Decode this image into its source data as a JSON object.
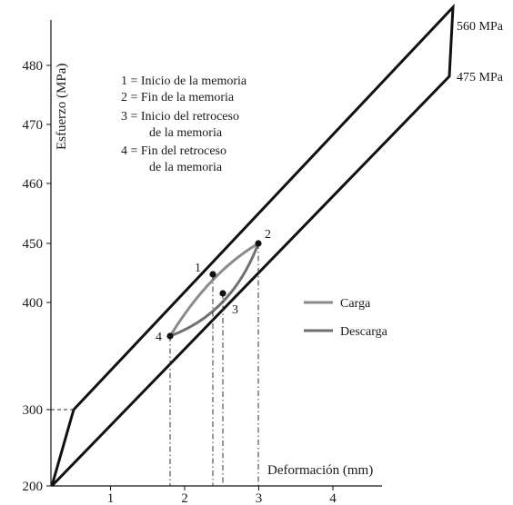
{
  "chart_data": {
    "type": "line",
    "title": "",
    "xlabel": "Deformación (mm)",
    "ylabel": "Esfuerzo (MPa)",
    "x_ticks": [
      "1",
      "2",
      "3",
      "4"
    ],
    "y_ticks": [
      "200",
      "300",
      "400",
      "450",
      "460",
      "470",
      "480"
    ],
    "y_scale": "piecewise (broken axis)",
    "grid": false,
    "outer_loop": {
      "vertices": [
        [
          0,
          200
        ],
        [
          0.25,
          300
        ],
        [
          5.5,
          560
        ],
        [
          5.45,
          475
        ]
      ],
      "upper_label": "560 MPa",
      "lower_label": "475 MPa"
    },
    "points": [
      {
        "id": "1",
        "x": 2.4,
        "y": 444
      },
      {
        "id": "2",
        "x": 3.0,
        "y": 450
      },
      {
        "id": "3",
        "x": 2.55,
        "y": 441
      },
      {
        "id": "4",
        "x": 1.85,
        "y": 395
      }
    ],
    "notes": [
      "1 = Inicio de la memoria",
      "2 = Fin de la memoria",
      "3 = Inicio del retroceso",
      "de la memoria",
      "4 = Fin del retroceso",
      "de la memoria"
    ],
    "legend": {
      "placement": "right",
      "entries": [
        {
          "name": "Carga",
          "color": "#8a8a8a"
        },
        {
          "name": "Descarga",
          "color": "#707070"
        }
      ]
    },
    "colors": {
      "loop": "#111111",
      "inner": "#8a8a8a",
      "axis": "#111111",
      "guide": "#333333"
    }
  }
}
